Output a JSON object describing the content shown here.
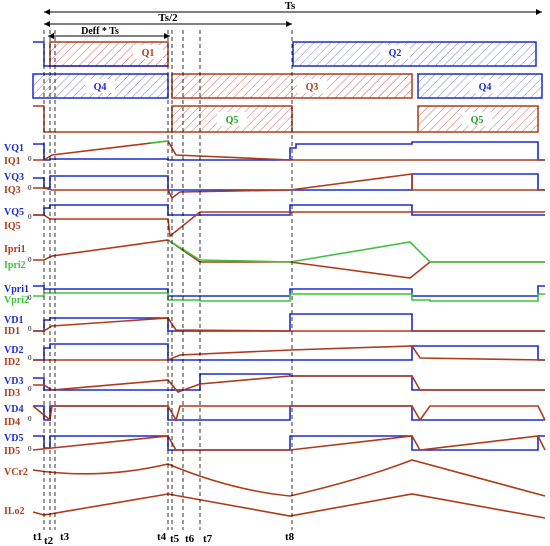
{
  "header": {
    "period_label": "Ts",
    "half_period_label": "Ts/2",
    "duty_label": "Deff * Ts"
  },
  "gates": {
    "row1": {
      "a": "Q1",
      "b": "Q2"
    },
    "row2": {
      "a": "Q4",
      "b": "Q3",
      "c": "Q4"
    },
    "row3": {
      "a": "Q5",
      "b": "Q5"
    }
  },
  "traces": [
    {
      "top": "VQ1",
      "bottom": "IQ1",
      "zero": "0"
    },
    {
      "top": "VQ3",
      "bottom": "IQ3",
      "zero": "0"
    },
    {
      "top": "VQ5",
      "bottom": "IQ5",
      "zero": "0"
    },
    {
      "top": "Ipri1",
      "bottom": "Ipri2",
      "zero": "0"
    },
    {
      "top": "Vpri1",
      "bottom": "Vpri2",
      "zero": "0"
    },
    {
      "top": "VD1",
      "bottom": "ID1",
      "zero": "0"
    },
    {
      "top": "VD2",
      "bottom": "ID2",
      "zero": "0"
    },
    {
      "top": "VD3",
      "bottom": "ID3",
      "zero": "0"
    },
    {
      "top": "VD4",
      "bottom": "ID4",
      "zero": "0"
    },
    {
      "top": "VD5",
      "bottom": "ID5",
      "zero": "0"
    },
    {
      "top": "VCr2",
      "bottom": "",
      "zero": ""
    },
    {
      "top": "ILo2",
      "bottom": "",
      "zero": ""
    }
  ],
  "time_labels": [
    "t1",
    "t2",
    "t3",
    "t4",
    "t5",
    "t6",
    "t7",
    "t8"
  ],
  "colors": {
    "blue": "#1a2bd6",
    "red": "#b03a1a",
    "green": "#3cc43c",
    "dark": "#000000"
  }
}
